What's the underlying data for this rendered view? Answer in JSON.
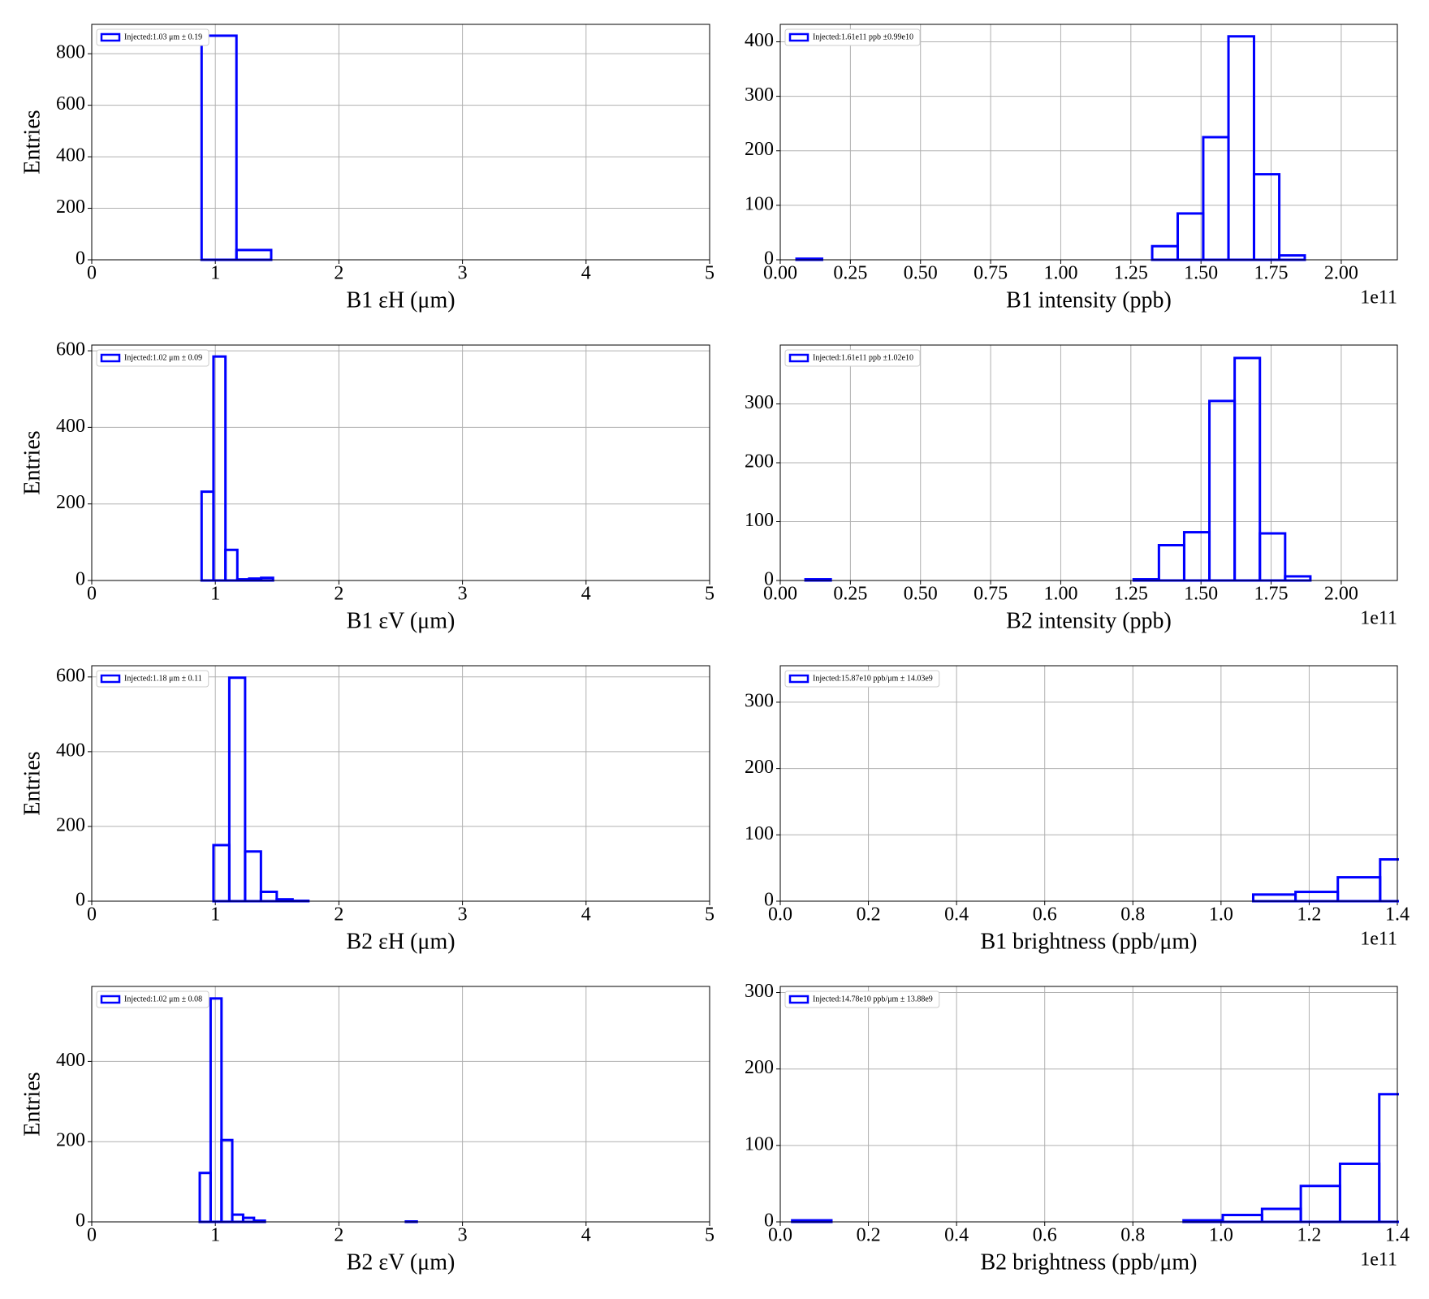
{
  "chart_data": [
    {
      "type": "histogram",
      "x_label": "B1 εH (μm)",
      "y_label": "Entries",
      "grid": true,
      "legend": "upper left",
      "xlim": [
        0,
        5
      ],
      "xticks": [
        0,
        1,
        2,
        3,
        4,
        5
      ],
      "ylim": [
        0,
        914
      ],
      "yticks": [
        0,
        200,
        400,
        600,
        800
      ],
      "bins": [
        0.889,
        1.171,
        1.452,
        1.734,
        2.015,
        2.297,
        2.578,
        2.86,
        3.141,
        3.423,
        3.704,
        3.986,
        4.267,
        4.549,
        4.83,
        5.112
      ],
      "series": [
        {
          "name": "Injected:1.03 μm ± 0.19",
          "color": "#0000ff",
          "values": [
            870,
            38,
            0,
            0,
            0,
            0,
            0,
            0,
            0,
            0,
            0,
            0,
            0,
            0,
            0
          ]
        }
      ]
    },
    {
      "type": "histogram",
      "x_label": "B1 intensity (ppb)",
      "x_offset": "1e11",
      "grid": true,
      "legend": "upper left",
      "xlim": [
        0,
        2.2
      ],
      "xticks": [
        {
          "value": 0,
          "label": "0.00"
        },
        {
          "value": 0.25,
          "label": "0.25"
        },
        {
          "value": 0.5,
          "label": "0.50"
        },
        {
          "value": 0.75,
          "label": "0.75"
        },
        {
          "value": 1,
          "label": "1.00"
        },
        {
          "value": 1.25,
          "label": "1.25"
        },
        {
          "value": 1.5,
          "label": "1.50"
        },
        {
          "value": 1.75,
          "label": "1.75"
        },
        {
          "value": 2,
          "label": "2.00"
        }
      ],
      "ylim": [
        0,
        432
      ],
      "yticks": [
        0,
        100,
        200,
        300,
        400
      ],
      "bins": [
        0.058,
        0.149,
        0.239,
        0.33,
        0.42,
        0.511,
        0.602,
        0.692,
        0.783,
        0.873,
        0.964,
        1.055,
        1.145,
        1.236,
        1.326,
        1.417,
        1.508,
        1.598,
        1.689,
        1.779,
        1.87
      ],
      "series": [
        {
          "name": "Injected:1.61e11 ppb ±0.99e10",
          "color": "#0000ff",
          "values": [
            2,
            0,
            0,
            0,
            0,
            0,
            0,
            0,
            0,
            0,
            0,
            0,
            0,
            0,
            25,
            85,
            225,
            410,
            157,
            8
          ]
        }
      ]
    },
    {
      "type": "histogram",
      "x_label": "B1 εV (μm)",
      "y_label": "Entries",
      "grid": true,
      "legend": "upper left",
      "xlim": [
        0,
        5
      ],
      "xticks": [
        0,
        1,
        2,
        3,
        4,
        5
      ],
      "ylim": [
        0,
        615
      ],
      "yticks": [
        0,
        200,
        400,
        600
      ],
      "bins": [
        0.889,
        0.985,
        1.082,
        1.178,
        1.274,
        1.371,
        1.467,
        1.563,
        1.659,
        1.756,
        1.852,
        1.948,
        2.045,
        2.141,
        2.237,
        2.334,
        2.43,
        2.526,
        2.622,
        2.719,
        2.815
      ],
      "series": [
        {
          "name": "Injected:1.02 μm ± 0.09",
          "color": "#0000ff",
          "values": [
            232,
            585,
            80,
            3,
            5,
            7,
            0,
            0,
            0,
            0,
            0,
            0,
            0,
            0,
            0,
            0,
            0,
            0,
            0,
            0
          ]
        }
      ]
    },
    {
      "type": "histogram",
      "x_label": "B2 intensity (ppb)",
      "x_offset": "1e11",
      "grid": true,
      "legend": "upper left",
      "xlim": [
        0,
        2.2
      ],
      "xticks": [
        {
          "value": 0,
          "label": "0.00"
        },
        {
          "value": 0.25,
          "label": "0.25"
        },
        {
          "value": 0.5,
          "label": "0.50"
        },
        {
          "value": 0.75,
          "label": "0.75"
        },
        {
          "value": 1,
          "label": "1.00"
        },
        {
          "value": 1.25,
          "label": "1.25"
        },
        {
          "value": 1.5,
          "label": "1.50"
        },
        {
          "value": 1.75,
          "label": "1.75"
        },
        {
          "value": 2,
          "label": "2.00"
        }
      ],
      "ylim": [
        0,
        400
      ],
      "yticks": [
        0,
        100,
        200,
        300
      ],
      "bins": [
        0.09,
        0.18,
        0.27,
        0.36,
        0.45,
        0.54,
        0.63,
        0.72,
        0.81,
        0.9,
        0.99,
        1.08,
        1.17,
        1.26,
        1.35,
        1.44,
        1.53,
        1.62,
        1.71,
        1.8,
        1.89
      ],
      "series": [
        {
          "name": "Injected:1.61e11 ppb ±1.02e10",
          "color": "#0000ff",
          "values": [
            2,
            0,
            0,
            0,
            0,
            0,
            0,
            0,
            0,
            0,
            0,
            0,
            0,
            2,
            60,
            82,
            305,
            378,
            80,
            7
          ]
        }
      ]
    },
    {
      "type": "histogram",
      "x_label": "B2 εH (μm)",
      "y_label": "Entries",
      "grid": true,
      "legend": "upper left",
      "xlim": [
        0,
        5
      ],
      "xticks": [
        0,
        1,
        2,
        3,
        4,
        5
      ],
      "ylim": [
        0,
        630
      ],
      "yticks": [
        0,
        200,
        400,
        600
      ],
      "bins": [
        0.985,
        1.113,
        1.241,
        1.369,
        1.497,
        1.625,
        1.753,
        1.881,
        2.009,
        2.137,
        2.265,
        2.393,
        2.521,
        2.649,
        2.777,
        2.905,
        3.033,
        3.161,
        3.289,
        3.417,
        3.545
      ],
      "series": [
        {
          "name": "Injected:1.18 μm ± 0.11",
          "color": "#0000ff",
          "values": [
            150,
            598,
            133,
            25,
            5,
            1,
            0,
            0,
            0,
            0,
            0,
            0,
            0,
            0,
            0,
            0,
            0,
            0,
            0,
            0
          ]
        }
      ]
    },
    {
      "type": "histogram",
      "x_label": "B1 brightness (ppb/μm)",
      "x_offset": "1e11",
      "grid": true,
      "legend": "upper left",
      "xlim": [
        0,
        1.4
      ],
      "xticks": [
        {
          "value": 0,
          "label": "0.0"
        },
        0.2,
        0.4,
        0.6,
        0.8,
        {
          "value": 1,
          "label": "1.0"
        },
        1.2,
        1.4
      ],
      "ylim": [
        0,
        355
      ],
      "yticks": [
        0,
        100,
        200,
        300
      ],
      "bins": [
        0.017,
        0.113,
        0.209,
        0.305,
        0.401,
        0.497,
        0.593,
        0.689,
        0.785,
        0.881,
        0.977,
        1.073,
        1.169,
        1.265,
        1.361,
        1.457
      ],
      "series": [
        {
          "name": "Injected:15.87e10 ppb/μm ± 14.03e9",
          "color": "#0000ff",
          "values": [
            0,
            0,
            0,
            0,
            0,
            0,
            0,
            0,
            0,
            0,
            0,
            10,
            14,
            36,
            63
          ]
        }
      ]
    },
    {
      "type": "histogram",
      "x_label": "B2 εV (μm)",
      "y_label": "Entries",
      "grid": true,
      "legend": "upper left",
      "xlim": [
        0,
        5
      ],
      "xticks": [
        0,
        1,
        2,
        3,
        4,
        5
      ],
      "ylim": [
        0,
        587
      ],
      "yticks": [
        0,
        200,
        400
      ],
      "bins": [
        0.874,
        0.962,
        1.05,
        1.137,
        1.225,
        1.313,
        1.401,
        1.489,
        1.576,
        1.664,
        1.752,
        1.84,
        1.928,
        2.015,
        2.103,
        2.191,
        2.279,
        2.367,
        2.454,
        2.542,
        2.63
      ],
      "series": [
        {
          "name": "Injected:1.02 μm ± 0.08",
          "color": "#0000ff",
          "values": [
            122,
            557,
            204,
            18,
            10,
            3,
            0,
            0,
            0,
            0,
            0,
            0,
            0,
            0,
            0,
            0,
            0,
            0,
            0,
            1
          ]
        }
      ]
    },
    {
      "type": "histogram",
      "x_label": "B2 brightness (ppb/μm)",
      "x_offset": "1e11",
      "grid": true,
      "legend": "upper left",
      "xlim": [
        0,
        1.4
      ],
      "xticks": [
        {
          "value": 0,
          "label": "0.0"
        },
        0.2,
        0.4,
        0.6,
        0.8,
        {
          "value": 1,
          "label": "1.0"
        },
        1.2,
        1.4
      ],
      "ylim": [
        0,
        308
      ],
      "yticks": [
        0,
        100,
        200,
        300
      ],
      "bins": [
        0.027,
        0.116,
        0.205,
        0.293,
        0.382,
        0.471,
        0.56,
        0.649,
        0.737,
        0.826,
        0.915,
        1.004,
        1.093,
        1.181,
        1.27,
        1.359,
        1.448
      ],
      "series": [
        {
          "name": "Injected:14.78e10 ppb/μm ± 13.88e9",
          "color": "#0000ff",
          "values": [
            2,
            0,
            0,
            0,
            0,
            0,
            0,
            0,
            0,
            0,
            2,
            9,
            17,
            47,
            76,
            167
          ]
        }
      ]
    }
  ]
}
